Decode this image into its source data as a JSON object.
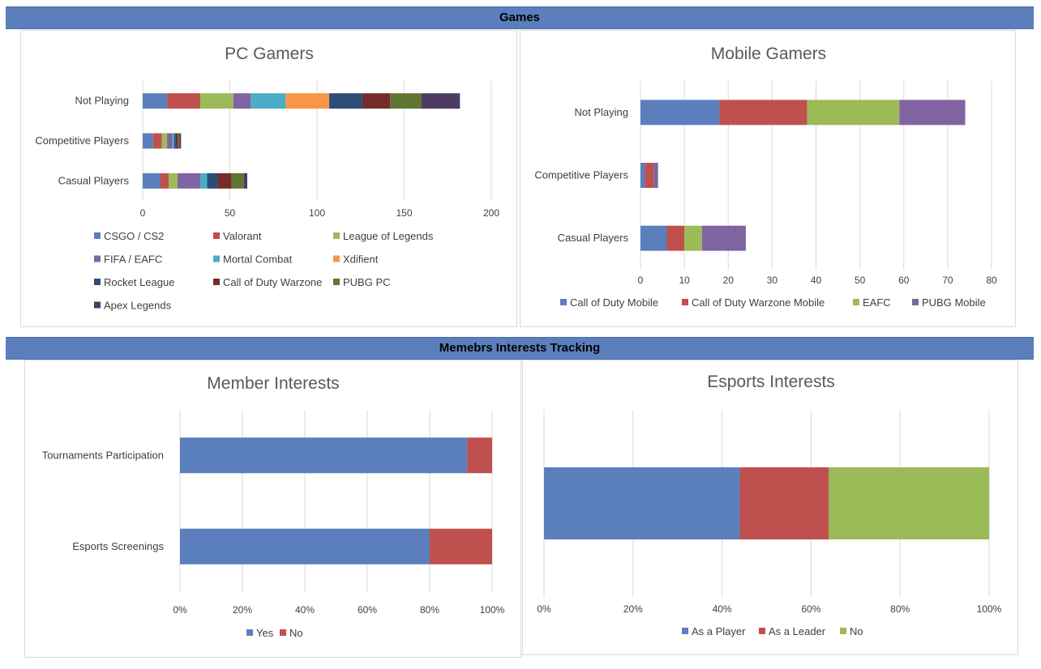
{
  "sections": {
    "games": "Games",
    "interests": "Memebrs Interests Tracking"
  },
  "chart_data": [
    {
      "id": "pc",
      "type": "bar",
      "orientation": "horizontal",
      "stacked": true,
      "title": "PC Gamers",
      "categories": [
        "Casual Players",
        "Competitive Players",
        "Not Playing"
      ],
      "xlim": [
        0,
        200
      ],
      "xticks": [
        0,
        50,
        100,
        150,
        200
      ],
      "tick_format": "number",
      "grid": true,
      "legend": "bottom",
      "series": [
        {
          "name": "CSGO / CS2",
          "color": "#5b7fbd",
          "values": [
            10,
            6,
            14
          ]
        },
        {
          "name": "Valorant",
          "color": "#c0504d",
          "values": [
            5,
            5,
            19
          ]
        },
        {
          "name": "League of Legends",
          "color": "#9bbb59",
          "values": [
            5,
            3,
            19
          ]
        },
        {
          "name": "FIFA / EAFC",
          "color": "#8064a2",
          "values": [
            13,
            3,
            10
          ]
        },
        {
          "name": "Mortal Combat",
          "color": "#4bacc6",
          "values": [
            4,
            1,
            20
          ]
        },
        {
          "name": "Xdifient",
          "color": "#f79646",
          "values": [
            0,
            0,
            25
          ]
        },
        {
          "name": "Rocket League",
          "color": "#2c4d75",
          "values": [
            6,
            1,
            19
          ]
        },
        {
          "name": "Call of Duty Warzone",
          "color": "#772c2a",
          "values": [
            8,
            1,
            16
          ]
        },
        {
          "name": "PUBG PC",
          "color": "#5f7530",
          "values": [
            7,
            1,
            18
          ]
        },
        {
          "name": "Apex Legends",
          "color": "#4d3b62",
          "values": [
            2,
            1,
            22
          ]
        }
      ]
    },
    {
      "id": "mobile",
      "type": "bar",
      "orientation": "horizontal",
      "stacked": true,
      "title": "Mobile Gamers",
      "categories": [
        "Casual Players",
        "Competitive Players",
        "Not Playing"
      ],
      "xlim": [
        0,
        80
      ],
      "xticks": [
        0,
        10,
        20,
        30,
        40,
        50,
        60,
        70,
        80
      ],
      "tick_format": "number",
      "grid": true,
      "legend": "bottom",
      "series": [
        {
          "name": "Call of Duty Mobile",
          "color": "#5b7fbd",
          "values": [
            6,
            1,
            18
          ]
        },
        {
          "name": "Call of Duty Warzone Mobile",
          "color": "#c0504d",
          "values": [
            4,
            2,
            20
          ]
        },
        {
          "name": "EAFC",
          "color": "#9bbb59",
          "values": [
            4,
            0,
            21
          ]
        },
        {
          "name": "PUBG Mobile",
          "color": "#8064a2",
          "values": [
            10,
            1,
            15
          ]
        }
      ]
    },
    {
      "id": "member",
      "type": "bar",
      "orientation": "horizontal",
      "stacked": true,
      "percent": true,
      "title": "Member Interests",
      "categories": [
        "Esports Screenings",
        "Tournaments Participation"
      ],
      "xlim": [
        0,
        100
      ],
      "xticks": [
        0,
        20,
        40,
        60,
        80,
        100
      ],
      "tick_format": "percent",
      "grid": true,
      "legend": "bottom",
      "series": [
        {
          "name": "Yes",
          "color": "#5b7fbd",
          "values": [
            80,
            92
          ]
        },
        {
          "name": "No",
          "color": "#c0504d",
          "values": [
            20,
            8
          ]
        }
      ]
    },
    {
      "id": "esports",
      "type": "bar",
      "orientation": "horizontal",
      "stacked": true,
      "percent": true,
      "title": "Esports Interests",
      "categories": [
        ""
      ],
      "xlim": [
        0,
        100
      ],
      "xticks": [
        0,
        20,
        40,
        60,
        80,
        100
      ],
      "tick_format": "percent",
      "grid": true,
      "legend": "bottom",
      "series": [
        {
          "name": "As a Player",
          "color": "#5b7fbd",
          "values": [
            44
          ]
        },
        {
          "name": "As a Leader",
          "color": "#c0504d",
          "values": [
            20
          ]
        },
        {
          "name": "No",
          "color": "#9bbb59",
          "values": [
            36
          ]
        }
      ]
    }
  ]
}
